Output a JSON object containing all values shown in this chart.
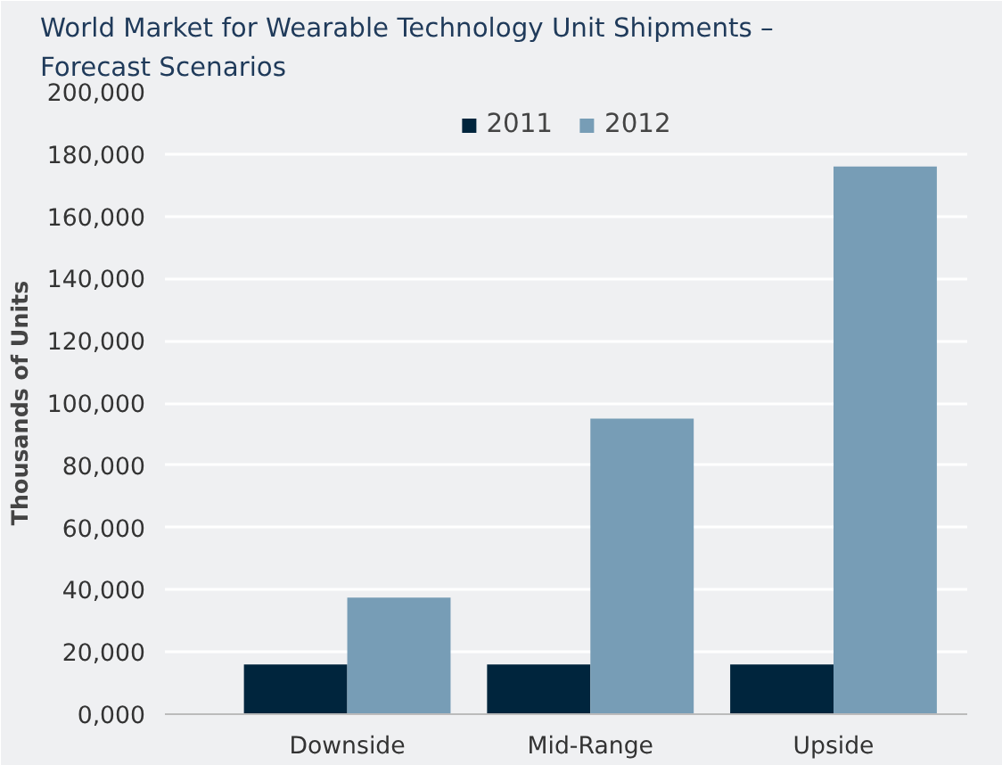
{
  "chart_data": {
    "type": "bar",
    "title": "World Market for Wearable Technology Unit Shipments –\nForecast Scenarios",
    "ylabel": "Thousands of Units",
    "categories": [
      "Downside",
      "Mid-Range",
      "Upside"
    ],
    "series": [
      {
        "name": "2011",
        "color": "#00253d",
        "values": [
          16000,
          16000,
          16000
        ]
      },
      {
        "name": "2012",
        "color": "#779db6",
        "values": [
          37500,
          95000,
          176000
        ]
      }
    ],
    "ylim": [
      0,
      200000
    ],
    "yticks": [
      {
        "value": 0,
        "label": "0,000"
      },
      {
        "value": 20000,
        "label": "20,000"
      },
      {
        "value": 40000,
        "label": "40,000"
      },
      {
        "value": 60000,
        "label": "60,000"
      },
      {
        "value": 80000,
        "label": "80,000"
      },
      {
        "value": 100000,
        "label": "100,000"
      },
      {
        "value": 120000,
        "label": "120,000"
      },
      {
        "value": 140000,
        "label": "140,000"
      },
      {
        "value": 160000,
        "label": "160,000"
      },
      {
        "value": 180000,
        "label": "180,000"
      },
      {
        "value": 200000,
        "label": "200,000"
      }
    ],
    "grid": "y",
    "legend": "top"
  }
}
